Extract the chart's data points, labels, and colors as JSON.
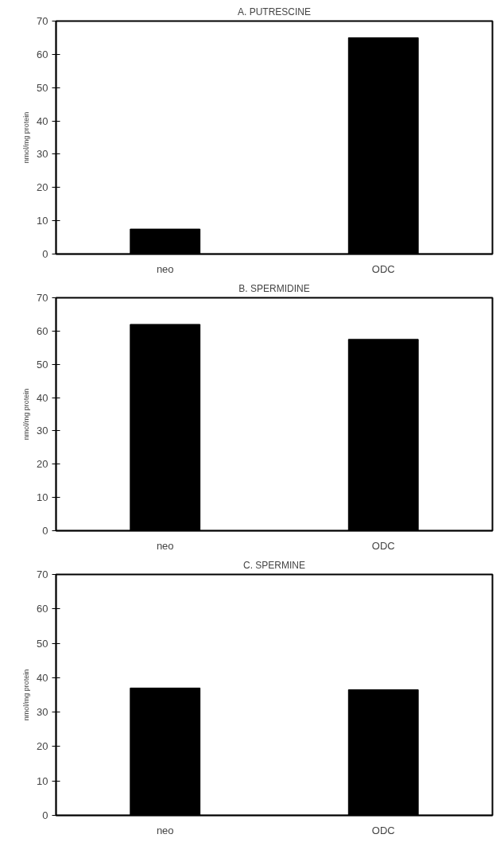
{
  "chart_data": [
    {
      "type": "bar",
      "title": "A. PUTRESCINE",
      "ylabel": "nmol/mg protein",
      "categories": [
        "neo",
        "ODC"
      ],
      "values": [
        7.5,
        65
      ],
      "color": "#000000",
      "ylim": [
        0,
        70
      ],
      "yticks": [
        0,
        10,
        20,
        30,
        40,
        50,
        60,
        70
      ],
      "grid": false
    },
    {
      "type": "bar",
      "title": "B. SPERMIDINE",
      "ylabel": "nmol/mg protein",
      "categories": [
        "neo",
        "ODC"
      ],
      "values": [
        62,
        57.5
      ],
      "color": "#000000",
      "ylim": [
        0,
        70
      ],
      "yticks": [
        0,
        10,
        20,
        30,
        40,
        50,
        60,
        70
      ],
      "grid": false
    },
    {
      "type": "bar",
      "title": "C. SPERMINE",
      "ylabel": "nmol/mg protein",
      "categories": [
        "neo",
        "ODC"
      ],
      "values": [
        37,
        36.5
      ],
      "color": "#000000",
      "ylim": [
        0,
        70
      ],
      "yticks": [
        0,
        10,
        20,
        30,
        40,
        50,
        60,
        70
      ],
      "grid": false
    }
  ]
}
